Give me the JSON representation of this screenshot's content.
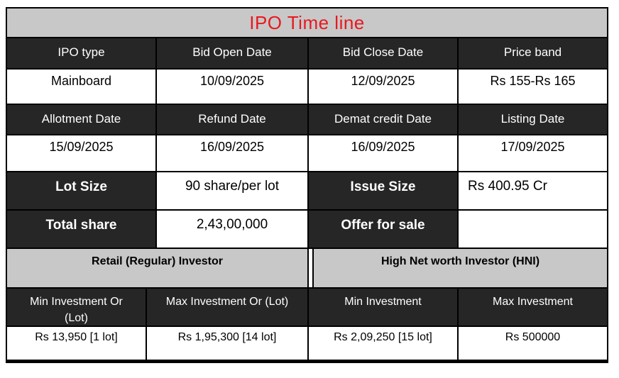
{
  "colors": {
    "accent_red": "#e8191f",
    "dark_cell": "#262626",
    "gray_cell": "#c8c8c8",
    "border": "#000000"
  },
  "title": "IPO Time line",
  "timeline": {
    "header_row1": [
      "IPO type",
      "Bid Open Date",
      "Bid Close Date",
      "Price band"
    ],
    "value_row1": [
      "Mainboard",
      "10/09/2025",
      "12/09/2025",
      "Rs 155-Rs 165"
    ],
    "header_row2": [
      "Allotment Date",
      "Refund Date",
      "Demat credit Date",
      "Listing Date"
    ],
    "value_row2": [
      "15/09/2025",
      "16/09/2025",
      "16/09/2025",
      "17/09/2025"
    ]
  },
  "details": {
    "lot_size_label": "Lot Size",
    "lot_size_value": "90 share/per lot",
    "issue_size_label": "Issue Size",
    "issue_size_value": "Rs 400.95 Cr",
    "total_share_label": "Total share",
    "total_share_value": "2,43,00,000",
    "offer_for_sale_label": "Offer for sale",
    "offer_for_sale_value": ""
  },
  "investors": {
    "retail_header": "Retail (Regular) Investor",
    "hni_header": "High Net worth Investor (HNI)",
    "column_headers": [
      "Min Investment Or (Lot)",
      "Max Investment Or (Lot)",
      "Min Investment",
      "Max Investment"
    ],
    "values": [
      "Rs 13,950 [1 lot]",
      "Rs 1,95,300 [14 lot]",
      "Rs 2,09,250 [15 lot]",
      "Rs 500000"
    ]
  }
}
